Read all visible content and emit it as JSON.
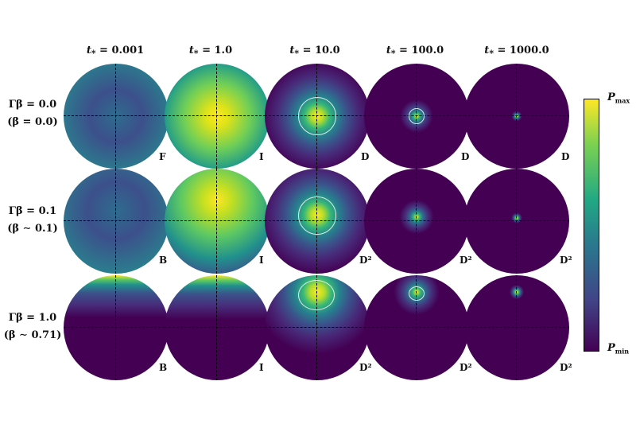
{
  "columns": [
    {
      "label": "t",
      "sub": "*",
      "value": "= 0.001"
    },
    {
      "label": "t",
      "sub": "*",
      "value": "= 1.0"
    },
    {
      "label": "t",
      "sub": "*",
      "value": "= 10.0"
    },
    {
      "label": "t",
      "sub": "*",
      "value": "= 100.0"
    },
    {
      "label": "t",
      "sub": "*",
      "value": "= 1000.0"
    }
  ],
  "rows": [
    {
      "line1": "Γβ = 0.0",
      "line2": "(β = 0.0)",
      "corners": [
        "F",
        "I",
        "D",
        "D",
        "D"
      ]
    },
    {
      "line1": "Γβ = 0.1",
      "line2": "(β ∼ 0.1)",
      "corners": [
        "B",
        "I",
        "D²",
        "D²",
        "D²"
      ]
    },
    {
      "line1": "Γβ = 1.0",
      "line2": "(β ∼ 0.71)",
      "corners": [
        "B",
        "I",
        "D²",
        "D²",
        "D²"
      ]
    }
  ],
  "colorbar": {
    "max_label": "P",
    "max_sub": "max",
    "min_label": "P",
    "min_sub": "min"
  },
  "colors": {
    "viridis_min": "#440154",
    "viridis_max": "#fde725",
    "ring": "#e6f5ee"
  }
}
